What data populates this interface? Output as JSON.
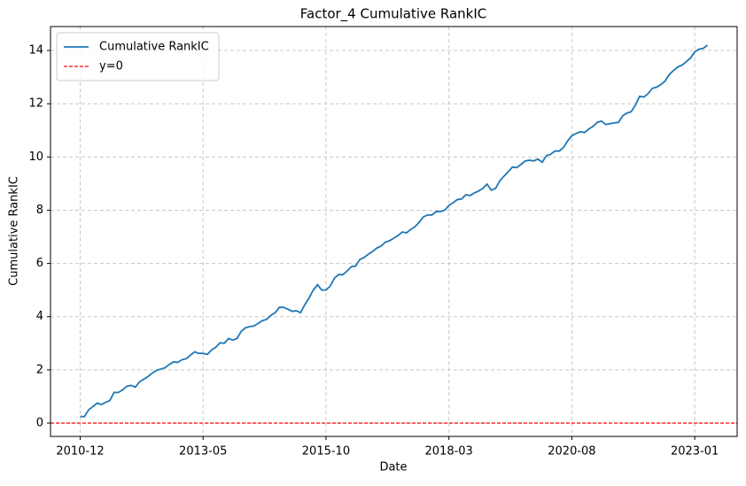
{
  "chart_data": {
    "type": "line",
    "title": "Factor_4 Cumulative RankIC",
    "xlabel": "Date",
    "ylabel": "Cumulative RankIC",
    "x": [
      "2010-12",
      "2011-01",
      "2011-02",
      "2011-03",
      "2011-04",
      "2011-05",
      "2011-06",
      "2011-07",
      "2011-08",
      "2011-09",
      "2011-10",
      "2011-11",
      "2011-12",
      "2012-01",
      "2012-02",
      "2012-03",
      "2012-04",
      "2012-05",
      "2012-06",
      "2012-07",
      "2012-08",
      "2012-09",
      "2012-10",
      "2012-11",
      "2012-12",
      "2013-01",
      "2013-02",
      "2013-03",
      "2013-04",
      "2013-05",
      "2013-06",
      "2013-07",
      "2013-08",
      "2013-09",
      "2013-10",
      "2013-11",
      "2013-12",
      "2014-01",
      "2014-02",
      "2014-03",
      "2014-04",
      "2014-05",
      "2014-06",
      "2014-07",
      "2014-08",
      "2014-09",
      "2014-10",
      "2014-11",
      "2014-12",
      "2015-01",
      "2015-02",
      "2015-03",
      "2015-04",
      "2015-05",
      "2015-06",
      "2015-07",
      "2015-08",
      "2015-09",
      "2015-10",
      "2015-11",
      "2015-12",
      "2016-01",
      "2016-02",
      "2016-03",
      "2016-04",
      "2016-05",
      "2016-06",
      "2016-07",
      "2016-08",
      "2016-09",
      "2016-10",
      "2016-11",
      "2016-12",
      "2017-01",
      "2017-02",
      "2017-03",
      "2017-04",
      "2017-05",
      "2017-06",
      "2017-07",
      "2017-08",
      "2017-09",
      "2017-10",
      "2017-11",
      "2017-12",
      "2018-01",
      "2018-02",
      "2018-03",
      "2018-04",
      "2018-05",
      "2018-06",
      "2018-07",
      "2018-08",
      "2018-09",
      "2018-10",
      "2018-11",
      "2018-12",
      "2019-01",
      "2019-02",
      "2019-03",
      "2019-04",
      "2019-05",
      "2019-06",
      "2019-07",
      "2019-08",
      "2019-09",
      "2019-10",
      "2019-11",
      "2019-12",
      "2020-01",
      "2020-02",
      "2020-03",
      "2020-04",
      "2020-05",
      "2020-06",
      "2020-07",
      "2020-08",
      "2020-09",
      "2020-10",
      "2020-11",
      "2020-12",
      "2021-01",
      "2021-02",
      "2021-03",
      "2021-04",
      "2021-05",
      "2021-06",
      "2021-07",
      "2021-08",
      "2021-09",
      "2021-10",
      "2021-11",
      "2021-12",
      "2022-01",
      "2022-02",
      "2022-03",
      "2022-04",
      "2022-05",
      "2022-06",
      "2022-07",
      "2022-08",
      "2022-09",
      "2022-10",
      "2022-11",
      "2022-12",
      "2023-01",
      "2023-02",
      "2023-03",
      "2023-04"
    ],
    "series": [
      {
        "name": "Cumulative RankIC",
        "color": "#1f77b4",
        "values": [
          0.25,
          0.24,
          0.5,
          0.62,
          0.75,
          0.7,
          0.78,
          0.85,
          1.15,
          1.15,
          1.25,
          1.38,
          1.42,
          1.35,
          1.55,
          1.65,
          1.75,
          1.88,
          1.98,
          2.03,
          2.08,
          2.2,
          2.3,
          2.28,
          2.38,
          2.42,
          2.55,
          2.68,
          2.62,
          2.62,
          2.58,
          2.75,
          2.85,
          3.02,
          3.0,
          3.18,
          3.12,
          3.18,
          3.45,
          3.58,
          3.63,
          3.65,
          3.75,
          3.85,
          3.9,
          4.05,
          4.15,
          4.35,
          4.35,
          4.28,
          4.2,
          4.22,
          4.15,
          4.45,
          4.7,
          5.0,
          5.2,
          5.0,
          5.0,
          5.15,
          5.45,
          5.58,
          5.58,
          5.72,
          5.88,
          5.9,
          6.15,
          6.22,
          6.35,
          6.45,
          6.58,
          6.65,
          6.8,
          6.85,
          6.95,
          7.05,
          7.18,
          7.15,
          7.28,
          7.38,
          7.55,
          7.75,
          7.82,
          7.82,
          7.95,
          7.95,
          8.0,
          8.18,
          8.28,
          8.4,
          8.42,
          8.58,
          8.55,
          8.65,
          8.72,
          8.82,
          8.98,
          8.75,
          8.82,
          9.1,
          9.28,
          9.45,
          9.62,
          9.6,
          9.72,
          9.85,
          9.88,
          9.85,
          9.92,
          9.8,
          10.05,
          10.1,
          10.22,
          10.22,
          10.35,
          10.6,
          10.8,
          10.88,
          10.95,
          10.92,
          11.05,
          11.15,
          11.3,
          11.35,
          11.22,
          11.25,
          11.28,
          11.3,
          11.55,
          11.65,
          11.7,
          11.95,
          12.28,
          12.25,
          12.38,
          12.58,
          12.62,
          12.72,
          12.85,
          13.1,
          13.25,
          13.38,
          13.45,
          13.58,
          13.72,
          13.95,
          14.05,
          14.08,
          14.2
        ]
      }
    ],
    "hlines": [
      {
        "name": "y=0",
        "value": 0,
        "color": "#ff0000"
      }
    ],
    "xlim": [
      "2010-05",
      "2023-11"
    ],
    "xticks": [
      "2010-12",
      "2013-05",
      "2015-10",
      "2018-03",
      "2020-08",
      "2023-01"
    ],
    "ylim": [
      -0.5,
      14.9
    ],
    "yticks": [
      0,
      2,
      4,
      6,
      8,
      10,
      12,
      14
    ],
    "grid": true,
    "legend": "upper left"
  }
}
